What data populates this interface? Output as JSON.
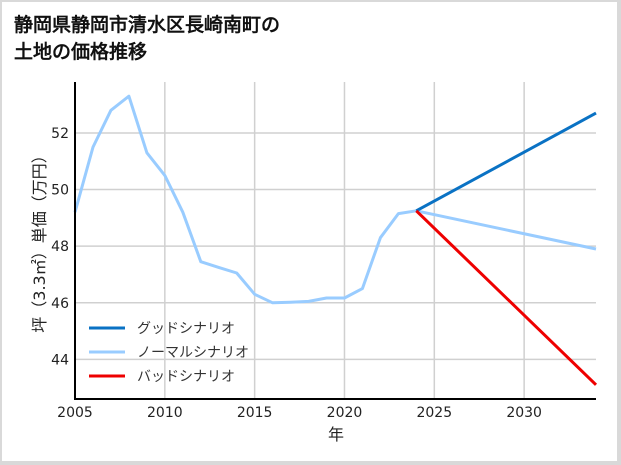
{
  "title_line1": "静岡県静岡市清水区長崎南町の",
  "title_line2": "土地の価格推移",
  "chart_data": {
    "type": "line",
    "title": "静岡県静岡市清水区長崎南町の土地の価格推移",
    "xlabel": "年",
    "ylabel": "坪（3.3㎡）単価（万円）",
    "xlim": [
      2005,
      2034
    ],
    "ylim": [
      42.6,
      53.8
    ],
    "xticks": [
      2005,
      2010,
      2015,
      2020,
      2025,
      2030
    ],
    "yticks": [
      44,
      46,
      48,
      50,
      52
    ],
    "grid": true,
    "legend_position": "lower left",
    "series": [
      {
        "name": "グッドシナリオ",
        "color": "#0a72c4",
        "x": [
          2024,
          2034
        ],
        "values": [
          49.25,
          52.7
        ]
      },
      {
        "name": "ノーマルシナリオ",
        "color": "#99ccff",
        "x": [
          2005,
          2006,
          2007,
          2008,
          2009,
          2010,
          2011,
          2012,
          2013,
          2014,
          2015,
          2016,
          2017,
          2018,
          2019,
          2020,
          2021,
          2022,
          2023,
          2024,
          2034
        ],
        "values": [
          49.2,
          51.5,
          52.8,
          53.3,
          51.3,
          50.5,
          49.2,
          47.45,
          47.25,
          47.05,
          46.3,
          46.0,
          46.02,
          46.05,
          46.17,
          46.17,
          46.5,
          48.3,
          49.15,
          49.25,
          47.9
        ]
      },
      {
        "name": "バッドシナリオ",
        "color": "#ee0000",
        "x": [
          2024,
          2034
        ],
        "values": [
          49.25,
          43.1
        ]
      }
    ]
  }
}
